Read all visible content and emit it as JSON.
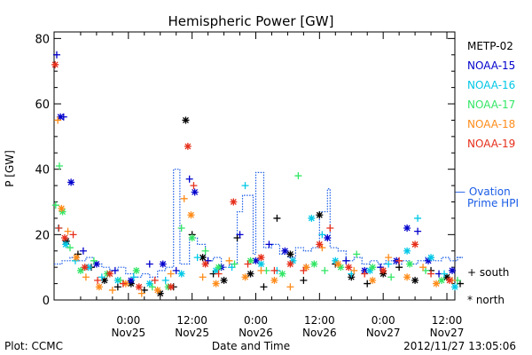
{
  "chart_data": {
    "type": "scatter",
    "title": "Hemispheric Power [GW]",
    "xlabel": "Date and Time",
    "ylabel": "P [GW]",
    "ylim": [
      0,
      82
    ],
    "xlim": [
      "2012-11-24 10:00",
      "2012-11-27 13:00"
    ],
    "yticks": [
      "0",
      "20",
      "40",
      "60",
      "80"
    ],
    "xticks": [
      {
        "line1": "0:00",
        "line2": "Nov25"
      },
      {
        "line1": "12:00",
        "line2": "Nov25"
      },
      {
        "line1": "0:00",
        "line2": "Nov26"
      },
      {
        "line1": "12:00",
        "line2": "Nov26"
      },
      {
        "line1": "0:00",
        "line2": "Nov27"
      },
      {
        "line1": "12:00",
        "line2": "Nov27"
      }
    ],
    "grid": false,
    "legend_position": "right",
    "series": [
      {
        "name": "METP-02",
        "color": "#000000",
        "points": [
          [
            2.3,
            18,
            "n"
          ],
          [
            4.5,
            14,
            "s"
          ],
          [
            7.0,
            10,
            "s"
          ],
          [
            9.5,
            6,
            "n"
          ],
          [
            12.0,
            4,
            "s"
          ],
          [
            14.5,
            5,
            "n"
          ],
          [
            17.0,
            3,
            "s"
          ],
          [
            20.0,
            2,
            "n"
          ],
          [
            22.5,
            4,
            "s"
          ],
          [
            24.8,
            55,
            "n"
          ],
          [
            26.0,
            20,
            "s"
          ],
          [
            28.0,
            13,
            "n"
          ],
          [
            30.0,
            8,
            "s"
          ],
          [
            32.0,
            6,
            "n"
          ],
          [
            34.5,
            19,
            "s"
          ],
          [
            37.0,
            8,
            "n"
          ],
          [
            39.5,
            4,
            "s"
          ],
          [
            42.0,
            25,
            "s"
          ],
          [
            44.5,
            14,
            "n"
          ],
          [
            47.0,
            6,
            "s"
          ],
          [
            50.0,
            26,
            "n"
          ],
          [
            53.0,
            11,
            "s"
          ],
          [
            56.0,
            7,
            "n"
          ],
          [
            59.0,
            5,
            "s"
          ],
          [
            62.0,
            8,
            "n"
          ],
          [
            65.0,
            10,
            "s"
          ],
          [
            68.0,
            6,
            "n"
          ],
          [
            71.0,
            9,
            "s"
          ],
          [
            74.0,
            7,
            "n"
          ],
          [
            76.5,
            5,
            "s"
          ]
        ]
      },
      {
        "name": "NOAA-15",
        "color": "#0000cc",
        "points": [
          [
            0.5,
            75,
            "s"
          ],
          [
            1.2,
            56,
            "n"
          ],
          [
            1.8,
            56,
            "s"
          ],
          [
            3.2,
            36,
            "n"
          ],
          [
            5.5,
            15,
            "s"
          ],
          [
            8.0,
            11,
            "n"
          ],
          [
            11.5,
            9,
            "s"
          ],
          [
            14.5,
            6,
            "n"
          ],
          [
            18.0,
            11,
            "s"
          ],
          [
            20.5,
            11,
            "n"
          ],
          [
            23.0,
            9,
            "s"
          ],
          [
            25.5,
            37,
            "s"
          ],
          [
            26.5,
            33,
            "n"
          ],
          [
            29.0,
            12,
            "s"
          ],
          [
            31.5,
            10,
            "n"
          ],
          [
            35.0,
            20,
            "s"
          ],
          [
            38.0,
            12,
            "n"
          ],
          [
            40.5,
            17,
            "s"
          ],
          [
            43.5,
            15,
            "n"
          ],
          [
            47.5,
            10,
            "s"
          ],
          [
            51.5,
            19,
            "n"
          ],
          [
            55.0,
            12,
            "s"
          ],
          [
            58.5,
            9,
            "n"
          ],
          [
            61.5,
            10,
            "s"
          ],
          [
            64.5,
            12,
            "n"
          ],
          [
            66.5,
            22,
            "n"
          ],
          [
            68.5,
            21,
            "s"
          ],
          [
            70.5,
            12,
            "n"
          ],
          [
            72.5,
            8,
            "s"
          ],
          [
            75.0,
            9,
            "n"
          ]
        ]
      },
      {
        "name": "NOAA-16",
        "color": "#00c8e6",
        "points": [
          [
            0.8,
            22,
            "s"
          ],
          [
            2.2,
            17,
            "n"
          ],
          [
            4.0,
            12,
            "s"
          ],
          [
            6.5,
            10,
            "n"
          ],
          [
            9.0,
            7,
            "s"
          ],
          [
            12.0,
            6,
            "n"
          ],
          [
            15.0,
            7,
            "s"
          ],
          [
            18.0,
            5,
            "n"
          ],
          [
            21.0,
            6,
            "s"
          ],
          [
            24.0,
            8,
            "n"
          ],
          [
            27.0,
            13,
            "s"
          ],
          [
            30.5,
            9,
            "n"
          ],
          [
            33.5,
            10,
            "s"
          ],
          [
            36.0,
            35,
            "s"
          ],
          [
            39.0,
            11,
            "n"
          ],
          [
            42.0,
            9,
            "s"
          ],
          [
            45.0,
            12,
            "n"
          ],
          [
            48.5,
            25,
            "n"
          ],
          [
            50.5,
            20,
            "s"
          ],
          [
            53.0,
            12,
            "n"
          ],
          [
            56.0,
            8,
            "s"
          ],
          [
            59.5,
            9,
            "n"
          ],
          [
            63.0,
            11,
            "s"
          ],
          [
            66.5,
            15,
            "n"
          ],
          [
            68.5,
            25,
            "s"
          ],
          [
            71.0,
            13,
            "n"
          ],
          [
            73.5,
            8,
            "s"
          ],
          [
            75.5,
            4,
            "n"
          ]
        ]
      },
      {
        "name": "NOAA-17",
        "color": "#33e666",
        "points": [
          [
            0.3,
            29,
            "s"
          ],
          [
            1.0,
            41,
            "s"
          ],
          [
            1.6,
            27,
            "n"
          ],
          [
            3.0,
            16,
            "s"
          ],
          [
            5.0,
            9,
            "n"
          ],
          [
            7.5,
            12,
            "s"
          ],
          [
            10.0,
            8,
            "n"
          ],
          [
            12.5,
            6,
            "s"
          ],
          [
            15.5,
            9,
            "n"
          ],
          [
            18.5,
            4,
            "s"
          ],
          [
            21.5,
            4,
            "n"
          ],
          [
            24.0,
            22,
            "s"
          ],
          [
            26.0,
            19,
            "n"
          ],
          [
            28.5,
            15,
            "s"
          ],
          [
            31.0,
            10,
            "n"
          ],
          [
            34.0,
            11,
            "s"
          ],
          [
            37.0,
            12,
            "n"
          ],
          [
            40.0,
            9,
            "s"
          ],
          [
            43.0,
            8,
            "n"
          ],
          [
            46.0,
            38,
            "s"
          ],
          [
            49.0,
            11,
            "n"
          ],
          [
            51.0,
            9,
            "s"
          ],
          [
            54.0,
            10,
            "n"
          ],
          [
            57.0,
            14,
            "s"
          ],
          [
            60.0,
            10,
            "n"
          ],
          [
            63.5,
            7,
            "s"
          ],
          [
            67.0,
            11,
            "n"
          ],
          [
            70.0,
            9,
            "s"
          ],
          [
            73.0,
            6,
            "n"
          ],
          [
            76.0,
            6,
            "s"
          ]
        ]
      },
      {
        "name": "NOAA-18",
        "color": "#ff8c1a",
        "points": [
          [
            0.7,
            55,
            "s"
          ],
          [
            1.4,
            28,
            "n"
          ],
          [
            2.6,
            21,
            "s"
          ],
          [
            4.2,
            13,
            "n"
          ],
          [
            6.0,
            7,
            "s"
          ],
          [
            8.5,
            4,
            "n"
          ],
          [
            11.0,
            3,
            "s"
          ],
          [
            13.5,
            5,
            "n"
          ],
          [
            16.5,
            2,
            "s"
          ],
          [
            19.5,
            3,
            "n"
          ],
          [
            22.0,
            8,
            "s"
          ],
          [
            24.5,
            31,
            "s"
          ],
          [
            25.8,
            26,
            "n"
          ],
          [
            28.0,
            7,
            "s"
          ],
          [
            30.5,
            5,
            "n"
          ],
          [
            33.0,
            12,
            "s"
          ],
          [
            36.0,
            7,
            "n"
          ],
          [
            39.0,
            9,
            "s"
          ],
          [
            41.5,
            6,
            "n"
          ],
          [
            44.5,
            4,
            "s"
          ],
          [
            47.5,
            10,
            "n"
          ],
          [
            50.5,
            16,
            "s"
          ],
          [
            53.5,
            11,
            "n"
          ],
          [
            56.5,
            9,
            "s"
          ],
          [
            60.0,
            6,
            "n"
          ],
          [
            63.0,
            13,
            "s"
          ],
          [
            66.5,
            7,
            "n"
          ],
          [
            69.5,
            10,
            "s"
          ],
          [
            72.0,
            5,
            "n"
          ],
          [
            75.0,
            6,
            "s"
          ]
        ]
      },
      {
        "name": "NOAA-19",
        "color": "#e62e1a",
        "points": [
          [
            0.2,
            72,
            "n"
          ],
          [
            0.9,
            22,
            "s"
          ],
          [
            2.0,
            19,
            "n"
          ],
          [
            3.6,
            20,
            "s"
          ],
          [
            5.8,
            10,
            "n"
          ],
          [
            8.2,
            6,
            "s"
          ],
          [
            10.5,
            8,
            "n"
          ],
          [
            13.0,
            5,
            "s"
          ],
          [
            16.0,
            4,
            "n"
          ],
          [
            19.0,
            6,
            "s"
          ],
          [
            22.0,
            4,
            "n"
          ],
          [
            25.2,
            47,
            "n"
          ],
          [
            26.3,
            35,
            "s"
          ],
          [
            28.5,
            11,
            "n"
          ],
          [
            31.0,
            8,
            "s"
          ],
          [
            33.8,
            30,
            "n"
          ],
          [
            36.5,
            11,
            "s"
          ],
          [
            39.0,
            13,
            "n"
          ],
          [
            41.5,
            9,
            "s"
          ],
          [
            44.5,
            11,
            "n"
          ],
          [
            47.0,
            9,
            "s"
          ],
          [
            50.0,
            17,
            "n"
          ],
          [
            52.0,
            22,
            "s"
          ],
          [
            55.5,
            10,
            "n"
          ],
          [
            58.5,
            8,
            "s"
          ],
          [
            62.0,
            9,
            "n"
          ],
          [
            65.0,
            12,
            "s"
          ],
          [
            68.0,
            17,
            "n"
          ],
          [
            71.0,
            8,
            "s"
          ],
          [
            74.5,
            6,
            "n"
          ]
        ]
      }
    ],
    "ovation": {
      "name": "Ovation Prime HPI",
      "legend_line1": "— Ovation",
      "legend_line2": "Prime HPI",
      "color": "#1a5ce6",
      "steps": [
        [
          0,
          11
        ],
        [
          1.5,
          12
        ],
        [
          3,
          13
        ],
        [
          4.5,
          12
        ],
        [
          6,
          13
        ],
        [
          7.5,
          11
        ],
        [
          9,
          10
        ],
        [
          10.5,
          9
        ],
        [
          12,
          10
        ],
        [
          13.5,
          8
        ],
        [
          15,
          7
        ],
        [
          16.5,
          8
        ],
        [
          18,
          7
        ],
        [
          19.5,
          9
        ],
        [
          21,
          10
        ],
        [
          22.5,
          40
        ],
        [
          23.7,
          11
        ],
        [
          25.5,
          19
        ],
        [
          27,
          17
        ],
        [
          28.5,
          12
        ],
        [
          30,
          13
        ],
        [
          31.5,
          10
        ],
        [
          33,
          11
        ],
        [
          34.5,
          27
        ],
        [
          35.5,
          32
        ],
        [
          37.5,
          14
        ],
        [
          38,
          39
        ],
        [
          39.5,
          16
        ],
        [
          41,
          17
        ],
        [
          42.5,
          14
        ],
        [
          44,
          13
        ],
        [
          45.5,
          16
        ],
        [
          47,
          15
        ],
        [
          48.5,
          16
        ],
        [
          50,
          27
        ],
        [
          51.5,
          34
        ],
        [
          52,
          16
        ],
        [
          53.5,
          15
        ],
        [
          55,
          12
        ],
        [
          56.5,
          13
        ],
        [
          58,
          11
        ],
        [
          59.5,
          12
        ],
        [
          61,
          11
        ],
        [
          62.5,
          12
        ],
        [
          64,
          11
        ],
        [
          65.5,
          12
        ],
        [
          67,
          11
        ],
        [
          68.5,
          12
        ],
        [
          70,
          13
        ],
        [
          71.5,
          12
        ],
        [
          73,
          13
        ],
        [
          74.5,
          12
        ],
        [
          76,
          13
        ],
        [
          77,
          13
        ]
      ]
    },
    "hemisphere_legend": [
      {
        "symbol": "+",
        "label": "south"
      },
      {
        "symbol": "*",
        "label": "north"
      }
    ]
  },
  "footer": {
    "left": "Plot: CCMC",
    "right": "2012/11/27 13:05:06"
  }
}
